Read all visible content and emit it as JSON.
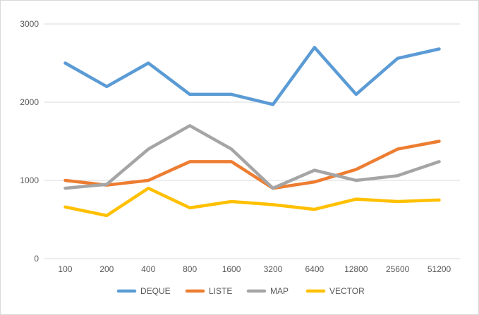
{
  "chart_data": {
    "type": "line",
    "title": "",
    "xlabel": "",
    "ylabel": "",
    "categories": [
      "100",
      "200",
      "400",
      "800",
      "1600",
      "3200",
      "6400",
      "12800",
      "25600",
      "51200"
    ],
    "ylim": [
      0,
      3000
    ],
    "yticks": [
      "0",
      "1000",
      "2000",
      "3000"
    ],
    "grid": true,
    "legend_position": "bottom",
    "series": [
      {
        "name": "DEQUE",
        "color": "#5b9bd5",
        "values": [
          2500,
          2200,
          2500,
          2100,
          2100,
          1970,
          2700,
          2100,
          2560,
          2680
        ]
      },
      {
        "name": "LISTE",
        "color": "#ed7d31",
        "values": [
          1000,
          940,
          1000,
          1240,
          1240,
          900,
          980,
          1140,
          1400,
          1500
        ]
      },
      {
        "name": "MAP",
        "color": "#a5a5a5",
        "values": [
          900,
          950,
          1400,
          1700,
          1400,
          900,
          1130,
          1000,
          1060,
          1240
        ]
      },
      {
        "name": "VECTOR",
        "color": "#ffc000",
        "values": [
          660,
          550,
          900,
          650,
          730,
          690,
          630,
          760,
          730,
          750
        ]
      }
    ]
  }
}
